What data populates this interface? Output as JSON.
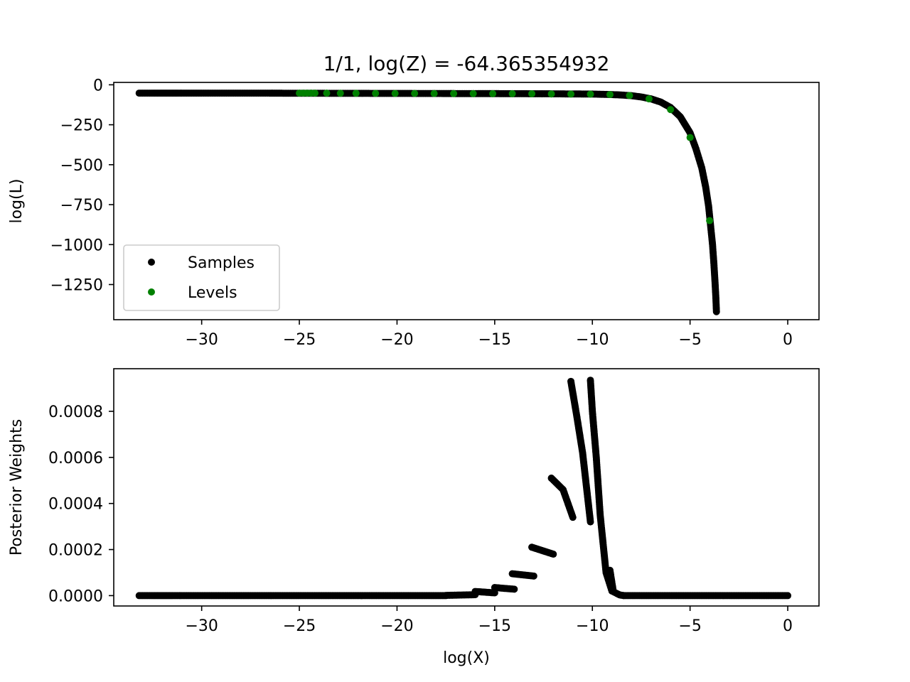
{
  "title": "1/1, log(Z) = -64.365354932",
  "colors": {
    "samples": "#000000",
    "levels": "#008000",
    "legend_frame": "#cccccc"
  },
  "chart_data": [
    {
      "type": "scatter",
      "xlabel": "",
      "ylabel": "log(L)",
      "xlim": [
        -34.5,
        1.6
      ],
      "ylim": [
        -1470,
        15
      ],
      "xticks": [
        -30,
        -25,
        -20,
        -15,
        -10,
        -5,
        0
      ],
      "xtick_labels": [
        "−30",
        "−25",
        "−20",
        "−15",
        "−10",
        "−5",
        "0"
      ],
      "yticks": [
        0,
        -250,
        -500,
        -750,
        -1000,
        -1250
      ],
      "ytick_labels": [
        "0",
        "−250",
        "−500",
        "−750",
        "−1000",
        "−1250"
      ],
      "legend": {
        "position": "lower-left",
        "entries": [
          "Samples",
          "Levels"
        ]
      },
      "series": [
        {
          "name": "Samples",
          "color": "#000000",
          "points": [
            [
              -33.2,
              -52
            ],
            [
              -32.5,
              -52
            ],
            [
              -32.1,
              -52
            ],
            [
              -31.8,
              -52
            ],
            [
              -31.5,
              -52
            ],
            [
              -31.2,
              -52
            ],
            [
              -30,
              -52
            ],
            [
              -28,
              -52
            ],
            [
              -26,
              -52.5
            ],
            [
              -24,
              -53
            ],
            [
              -22,
              -53.5
            ],
            [
              -20,
              -54
            ],
            [
              -18,
              -54.5
            ],
            [
              -16,
              -55
            ],
            [
              -14,
              -55.5
            ],
            [
              -12,
              -56.5
            ],
            [
              -10,
              -58
            ],
            [
              -9,
              -61
            ],
            [
              -8.5,
              -64
            ],
            [
              -8,
              -68
            ],
            [
              -7.5,
              -76
            ],
            [
              -7,
              -88
            ],
            [
              -6.5,
              -108
            ],
            [
              -6,
              -142
            ],
            [
              -5.5,
              -200
            ],
            [
              -5,
              -300
            ],
            [
              -4.7,
              -400
            ],
            [
              -4.4,
              -520
            ],
            [
              -4.2,
              -640
            ],
            [
              -4.05,
              -760
            ],
            [
              -3.95,
              -880
            ],
            [
              -3.85,
              -1000
            ],
            [
              -3.78,
              -1120
            ],
            [
              -3.72,
              -1240
            ],
            [
              -3.68,
              -1330
            ],
            [
              -3.65,
              -1420
            ]
          ]
        },
        {
          "name": "Levels",
          "color": "#008000",
          "points": [
            [
              -25,
              -52
            ],
            [
              -24.8,
              -52
            ],
            [
              -24.6,
              -52
            ],
            [
              -24.4,
              -52
            ],
            [
              -24.2,
              -52
            ],
            [
              -23.6,
              -52
            ],
            [
              -22.9,
              -53
            ],
            [
              -22.1,
              -53
            ],
            [
              -21.1,
              -53.5
            ],
            [
              -20.1,
              -54
            ],
            [
              -19.1,
              -54
            ],
            [
              -18.1,
              -54.5
            ],
            [
              -17.1,
              -55
            ],
            [
              -16.1,
              -55
            ],
            [
              -15.1,
              -55.5
            ],
            [
              -14.1,
              -55.5
            ],
            [
              -13.1,
              -56
            ],
            [
              -12.1,
              -57
            ],
            [
              -11.1,
              -58
            ],
            [
              -10.1,
              -58.5
            ],
            [
              -9.1,
              -61
            ],
            [
              -8.1,
              -67
            ],
            [
              -7.1,
              -88
            ],
            [
              -6.0,
              -155
            ],
            [
              -5.0,
              -330
            ],
            [
              -4.0,
              -850
            ]
          ]
        }
      ]
    },
    {
      "type": "scatter",
      "xlabel": "log(X)",
      "ylabel": "Posterior Weights",
      "xlim": [
        -34.5,
        1.6
      ],
      "ylim": [
        -4.5e-05,
        0.000985
      ],
      "xticks": [
        -30,
        -25,
        -20,
        -15,
        -10,
        -5,
        0
      ],
      "xtick_labels": [
        "−30",
        "−25",
        "−20",
        "−15",
        "−10",
        "−5",
        "0"
      ],
      "yticks": [
        0,
        0.0002,
        0.0004,
        0.0006,
        0.0008
      ],
      "ytick_labels": [
        "0.0000",
        "0.0002",
        "0.0004",
        "0.0006",
        "0.0008"
      ],
      "series": [
        {
          "name": "Samples",
          "color": "#000000",
          "segments": [
            [
              [
                -33.2,
                0
              ],
              [
                -32.5,
                0
              ],
              [
                -32.1,
                0
              ],
              [
                -31.8,
                0
              ],
              [
                -31.5,
                0
              ],
              [
                -17.5,
                0
              ]
            ],
            [
              [
                -17.5,
                1e-06
              ],
              [
                -16.0,
                4e-06
              ]
            ],
            [
              [
                -16.0,
                1.8e-05
              ],
              [
                -15.0,
                1.2e-05
              ]
            ],
            [
              [
                -15.0,
                3.5e-05
              ],
              [
                -14.0,
                2.8e-05
              ]
            ],
            [
              [
                -14.1,
                9.5e-05
              ],
              [
                -13.0,
                8.5e-05
              ]
            ],
            [
              [
                -13.1,
                0.00021
              ],
              [
                -12.0,
                0.00018
              ]
            ],
            [
              [
                -12.1,
                0.00051
              ],
              [
                -11.5,
                0.00046
              ],
              [
                -11.0,
                0.00034
              ]
            ],
            [
              [
                -11.1,
                0.00093
              ],
              [
                -10.8,
                0.00078
              ],
              [
                -10.5,
                0.00062
              ],
              [
                -10.1,
                0.00032
              ]
            ],
            [
              [
                -10.1,
                0.000935
              ],
              [
                -10.0,
                0.0008
              ],
              [
                -9.8,
                0.0006
              ],
              [
                -9.6,
                0.00035
              ],
              [
                -9.3,
                0.0001
              ],
              [
                -9.0,
                2e-05
              ],
              [
                -8.6,
                3e-06
              ],
              [
                -8.4,
                5e-07
              ]
            ],
            [
              [
                -9.1,
                0.00011
              ],
              [
                -8.95,
                3e-05
              ]
            ],
            [
              [
                -8.4,
                0
              ],
              [
                0,
                0
              ]
            ]
          ]
        }
      ]
    }
  ]
}
